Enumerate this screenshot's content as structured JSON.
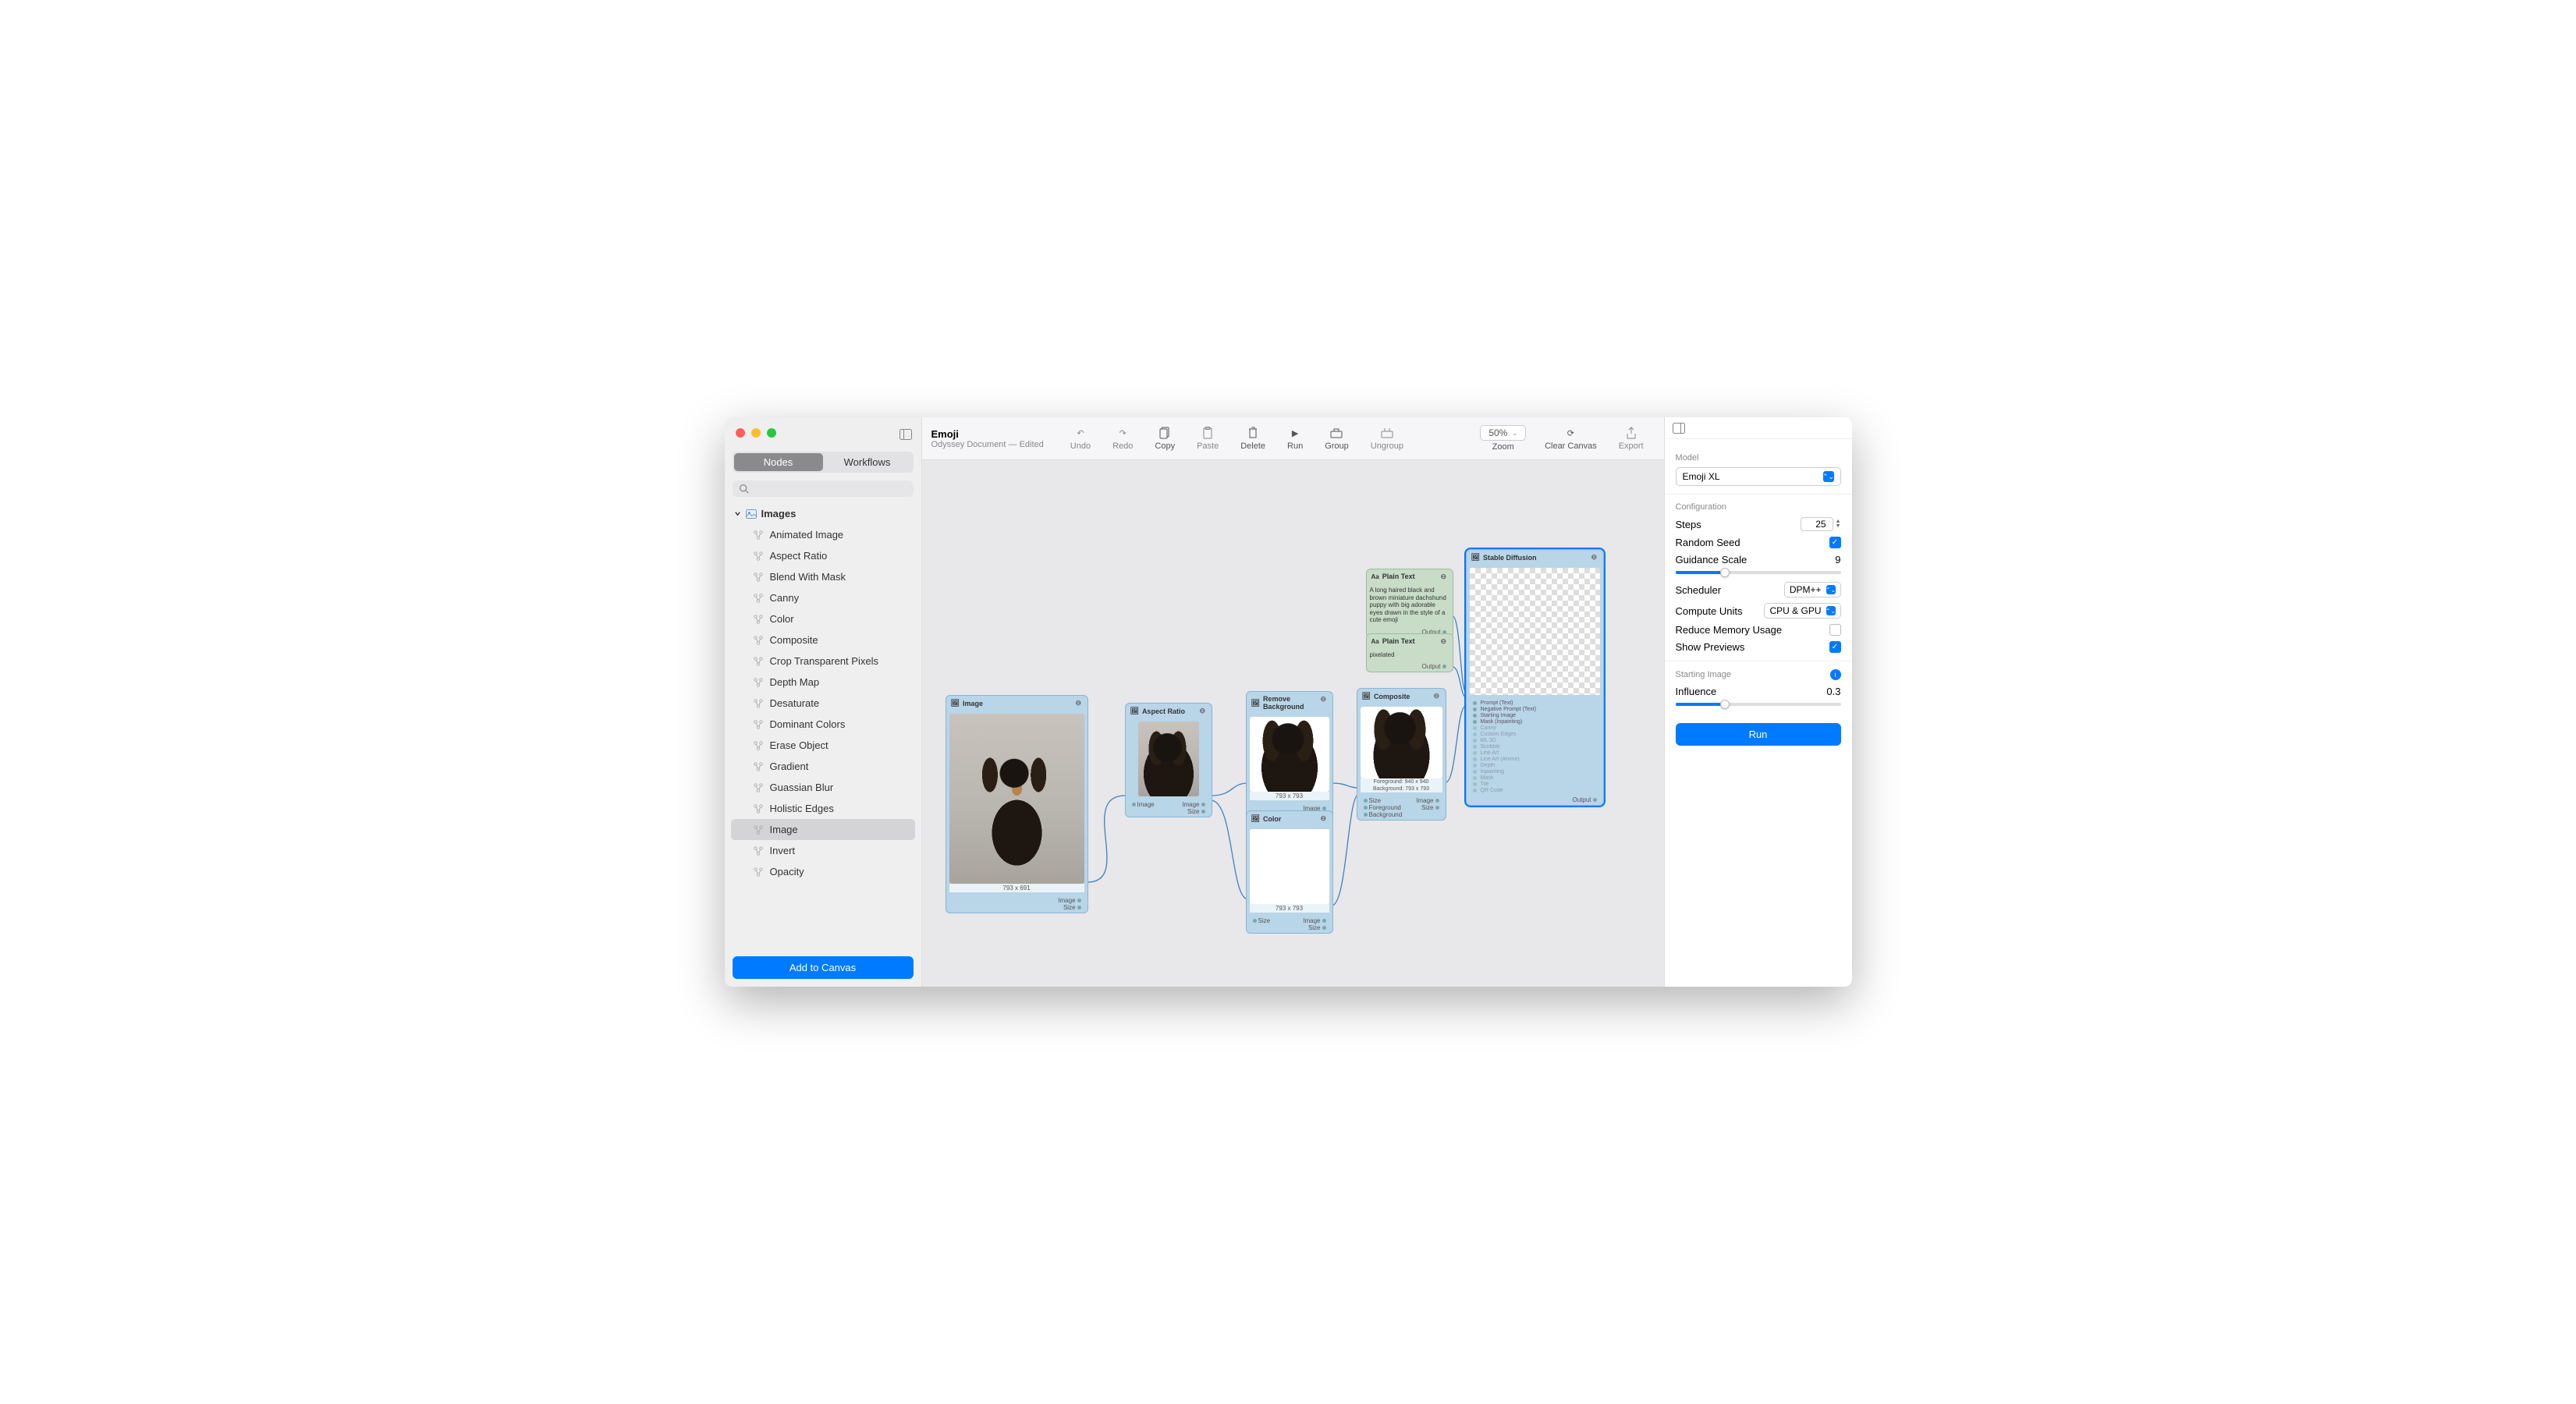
{
  "title": {
    "main": "Emoji",
    "sub": "Odyssey Document — Edited"
  },
  "sidebar": {
    "tabs": {
      "nodes": "Nodes",
      "workflows": "Workflows"
    },
    "group_label": "Images",
    "items": [
      "Animated Image",
      "Aspect Ratio",
      "Blend With Mask",
      "Canny",
      "Color",
      "Composite",
      "Crop Transparent Pixels",
      "Depth Map",
      "Desaturate",
      "Dominant Colors",
      "Erase Object",
      "Gradient",
      "Guassian Blur",
      "Holistic Edges",
      "Image",
      "Invert",
      "Opacity"
    ],
    "selected": "Image",
    "add_button": "Add to Canvas"
  },
  "toolbar": {
    "undo": "Undo",
    "redo": "Redo",
    "copy": "Copy",
    "paste": "Paste",
    "delete": "Delete",
    "run": "Run",
    "group": "Group",
    "ungroup": "Ungroup",
    "zoom_label": "Zoom",
    "zoom_value": "50%",
    "clear": "Clear Canvas",
    "export": "Export"
  },
  "canvas": {
    "nodes": {
      "image": {
        "title": "Image",
        "dim": "793 x 691",
        "out1": "Image",
        "out2": "Size"
      },
      "aspect": {
        "title": "Aspect Ratio",
        "in": "Image",
        "out1": "Image",
        "out2": "Size"
      },
      "removebg": {
        "title": "Remove Background",
        "dim": "793 x 793",
        "out1": "Image",
        "out2": "Mask"
      },
      "color": {
        "title": "Color",
        "dim": "793 x 793",
        "in": "Size",
        "out1": "Image",
        "out2": "Size"
      },
      "composite": {
        "title": "Composite",
        "cap1": "Foreground: 940 x 940",
        "cap2": "Background: 793 x 793",
        "in1": "Size",
        "in2": "Foreground",
        "in3": "Background",
        "out1": "Image",
        "out2": "Size"
      },
      "plaintext1": {
        "title": "Plain Text",
        "text": "A long haired black and brown miniature dachshund puppy with big adorable eyes drawn in the style of a cute emoji",
        "out": "Output"
      },
      "plaintext2": {
        "title": "Plain Text",
        "text": "pixelated",
        "out": "Output"
      },
      "sd": {
        "title": "Stable Diffusion",
        "ports_in": [
          "Prompt (Text)",
          "Negative Prompt (Text)",
          "Starting Image",
          "Mask (Inpainting)",
          "Canny",
          "Custom Edges",
          "ML 3D",
          "Scribble",
          "Line Art",
          "Line Art (Anime)",
          "Depth",
          "Inpainting",
          "Mask",
          "Tile",
          "QR Code"
        ],
        "out": "Output"
      }
    }
  },
  "inspector": {
    "model_label": "Model",
    "model_value": "Emoji XL",
    "config_label": "Configuration",
    "steps_label": "Steps",
    "steps_value": "25",
    "random_seed_label": "Random Seed",
    "random_seed": true,
    "guidance_label": "Guidance Scale",
    "guidance_value": "9",
    "guidance_pct": 30,
    "scheduler_label": "Scheduler",
    "scheduler_value": "DPM++",
    "compute_label": "Compute Units",
    "compute_value": "CPU & GPU",
    "reduce_mem_label": "Reduce Memory Usage",
    "reduce_mem": false,
    "show_prev_label": "Show Previews",
    "show_prev": true,
    "starting_img_label": "Starting Image",
    "influence_label": "Influence",
    "influence_value": "0.3",
    "influence_pct": 30,
    "run_button": "Run"
  },
  "colors": {
    "accent": "#007aff",
    "node_blue": "#b9d5e8",
    "node_green": "#c8dcc8"
  }
}
